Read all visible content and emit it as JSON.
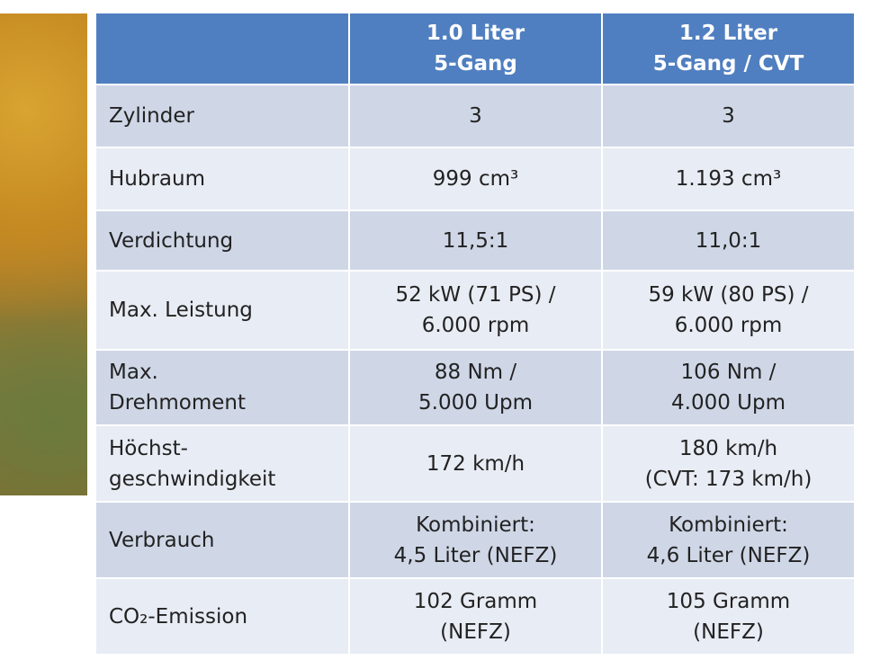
{
  "table": {
    "header": [
      "1.0 Liter\n5-Gang",
      "1.2 Liter\n5-Gang / CVT"
    ],
    "rows": [
      [
        "Zylinder",
        "3",
        "3"
      ],
      [
        "Hubraum",
        "999 cm³",
        "1.193 cm³"
      ],
      [
        "Verdichtung",
        "11,5:1",
        "11,0:1"
      ],
      [
        "Max. Leistung",
        "52 kW (71 PS) /\n6.000 rpm",
        "59 kW (80 PS) /\n6.000 rpm"
      ],
      [
        "Max.\nDrehmoment",
        "88 Nm /\n5.000 Upm",
        "106 Nm /\n4.000 Upm"
      ],
      [
        "Höchst-\ngeschwindigkeit",
        "172 km/h",
        "180 km/h\n(CVT: 173 km/h)"
      ],
      [
        "Verbrauch",
        "Kombiniert:\n4,5 Liter (NEFZ)",
        "Kombiniert:\n4,6 Liter (NEFZ)"
      ],
      [
        "CO₂-Emission",
        "102 Gramm\n(NEFZ)",
        "105 Gramm\n(NEFZ)"
      ]
    ]
  }
}
